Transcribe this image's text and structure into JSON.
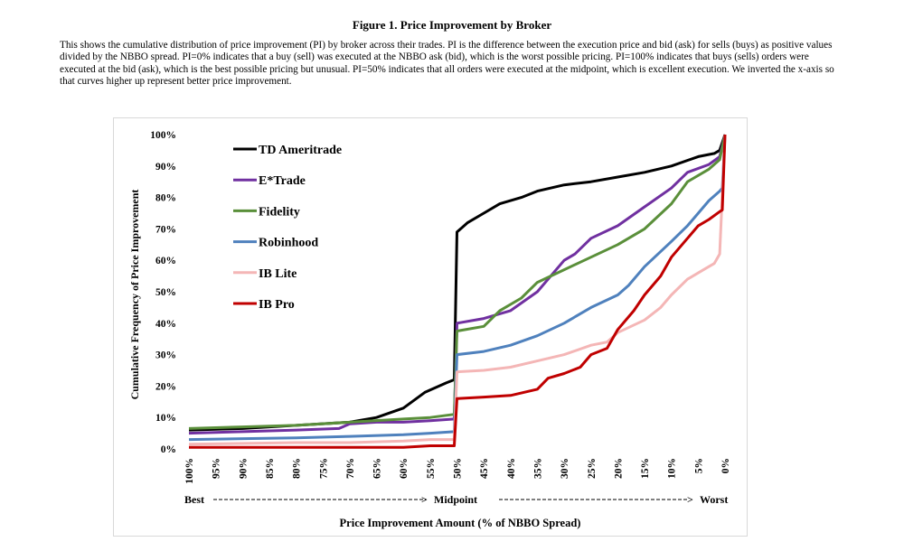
{
  "figure": {
    "title": "Figure 1. Price Improvement by Broker",
    "description": "This shows the cumulative distribution of price improvement (PI) by broker across their trades.  PI is the difference between the execution price and bid (ask) for sells (buys) as positive values divided by the NBBO spread.  PI=0% indicates that a buy (sell) was executed at the NBBO ask (bid), which is the worst possible pricing.  PI=100% indicates that buys (sells) orders were executed at the bid (ask), which is the best possible pricing but unusual.  PI=50% indicates that all orders were executed at the midpoint, which is excellent execution.  We inverted the x-axis so that curves higher up represent better price improvement."
  },
  "chart_data": {
    "type": "line",
    "title": "",
    "xlabel": "Price Improvement Amount (% of NBBO Spread)",
    "ylabel": "Cumulative Frequency of Price Improvement",
    "x_inverted": true,
    "xlim": [
      100,
      0
    ],
    "ylim": [
      0,
      100
    ],
    "x_ticks": [
      "100%",
      "95%",
      "90%",
      "85%",
      "80%",
      "75%",
      "70%",
      "65%",
      "60%",
      "55%",
      "50%",
      "45%",
      "40%",
      "35%",
      "30%",
      "25%",
      "20%",
      "15%",
      "10%",
      "5%",
      "0%"
    ],
    "y_ticks": [
      "0%",
      "10%",
      "20%",
      "30%",
      "40%",
      "50%",
      "60%",
      "70%",
      "80%",
      "90%",
      "100%"
    ],
    "x_annotations": {
      "left": "Best",
      "middle": "Midpoint",
      "right": "Worst"
    },
    "legend_position": "top-left",
    "grid": false,
    "series": [
      {
        "name": "TD Ameritrade",
        "color": "#000000",
        "points": [
          [
            100,
            6
          ],
          [
            90,
            6.5
          ],
          [
            80,
            7.5
          ],
          [
            70,
            8.5
          ],
          [
            65,
            10
          ],
          [
            60,
            13
          ],
          [
            56,
            18
          ],
          [
            52,
            21
          ],
          [
            50.5,
            22
          ],
          [
            50,
            69
          ],
          [
            48,
            72
          ],
          [
            45,
            75
          ],
          [
            42,
            78
          ],
          [
            38,
            80
          ],
          [
            35,
            82
          ],
          [
            30,
            84
          ],
          [
            25,
            85
          ],
          [
            20,
            86.5
          ],
          [
            15,
            88
          ],
          [
            10,
            90
          ],
          [
            5,
            93
          ],
          [
            2,
            94
          ],
          [
            1,
            95
          ],
          [
            0,
            100
          ]
        ]
      },
      {
        "name": "E*Trade",
        "color": "#7030a0",
        "points": [
          [
            100,
            5
          ],
          [
            90,
            5.5
          ],
          [
            80,
            6
          ],
          [
            72,
            6.5
          ],
          [
            70,
            8
          ],
          [
            65,
            8.5
          ],
          [
            60,
            8.5
          ],
          [
            55,
            9
          ],
          [
            50.5,
            9.5
          ],
          [
            50,
            40
          ],
          [
            45,
            41.5
          ],
          [
            40,
            44
          ],
          [
            35,
            50
          ],
          [
            30,
            60
          ],
          [
            28,
            62
          ],
          [
            25,
            67
          ],
          [
            20,
            71
          ],
          [
            15,
            77
          ],
          [
            10,
            83
          ],
          [
            7,
            88
          ],
          [
            3,
            90.5
          ],
          [
            1,
            93
          ],
          [
            0,
            100
          ]
        ]
      },
      {
        "name": "Fidelity",
        "color": "#5a8f3a",
        "points": [
          [
            100,
            6.5
          ],
          [
            90,
            7
          ],
          [
            80,
            7.5
          ],
          [
            70,
            8.5
          ],
          [
            60,
            9.5
          ],
          [
            55,
            10
          ],
          [
            50.5,
            11
          ],
          [
            50,
            37.5
          ],
          [
            45,
            39
          ],
          [
            42,
            44
          ],
          [
            38,
            48
          ],
          [
            35,
            53
          ],
          [
            30,
            57
          ],
          [
            25,
            61
          ],
          [
            20,
            65
          ],
          [
            15,
            70
          ],
          [
            10,
            78
          ],
          [
            7,
            85
          ],
          [
            3,
            89
          ],
          [
            1,
            92
          ],
          [
            0,
            100
          ]
        ]
      },
      {
        "name": "Robinhood",
        "color": "#4f81bd",
        "points": [
          [
            100,
            3
          ],
          [
            80,
            3.5
          ],
          [
            70,
            4
          ],
          [
            60,
            4.5
          ],
          [
            55,
            5
          ],
          [
            50.5,
            5.5
          ],
          [
            50,
            30
          ],
          [
            45,
            31
          ],
          [
            40,
            33
          ],
          [
            35,
            36
          ],
          [
            30,
            40
          ],
          [
            25,
            45
          ],
          [
            20,
            49
          ],
          [
            18,
            52
          ],
          [
            15,
            58
          ],
          [
            10,
            66
          ],
          [
            7,
            71
          ],
          [
            5,
            75
          ],
          [
            3,
            79
          ],
          [
            1,
            82
          ],
          [
            0.5,
            83
          ],
          [
            0,
            100
          ]
        ]
      },
      {
        "name": "IB Lite",
        "color": "#f4b6b6",
        "points": [
          [
            100,
            1.5
          ],
          [
            80,
            2
          ],
          [
            70,
            2
          ],
          [
            60,
            2.5
          ],
          [
            55,
            3
          ],
          [
            50.5,
            3
          ],
          [
            50,
            24.5
          ],
          [
            45,
            25
          ],
          [
            40,
            26
          ],
          [
            35,
            28
          ],
          [
            30,
            30
          ],
          [
            25,
            33
          ],
          [
            22,
            34
          ],
          [
            20,
            37
          ],
          [
            15,
            41
          ],
          [
            12,
            45
          ],
          [
            10,
            49
          ],
          [
            7,
            54
          ],
          [
            4,
            57
          ],
          [
            2,
            59
          ],
          [
            1,
            62
          ],
          [
            0,
            100
          ]
        ]
      },
      {
        "name": "IB Pro",
        "color": "#c00000",
        "points": [
          [
            100,
            0.5
          ],
          [
            70,
            0.5
          ],
          [
            60,
            0.5
          ],
          [
            55,
            1
          ],
          [
            50.5,
            1
          ],
          [
            50,
            16
          ],
          [
            45,
            16.5
          ],
          [
            40,
            17
          ],
          [
            35,
            19
          ],
          [
            33,
            22.5
          ],
          [
            30,
            24
          ],
          [
            27,
            26
          ],
          [
            25,
            30
          ],
          [
            22,
            32
          ],
          [
            20,
            38
          ],
          [
            17,
            44
          ],
          [
            15,
            49
          ],
          [
            12,
            55
          ],
          [
            10,
            61
          ],
          [
            7,
            67
          ],
          [
            5,
            71
          ],
          [
            3,
            73
          ],
          [
            1,
            75.5
          ],
          [
            0.5,
            76
          ],
          [
            0,
            100
          ]
        ]
      }
    ]
  }
}
